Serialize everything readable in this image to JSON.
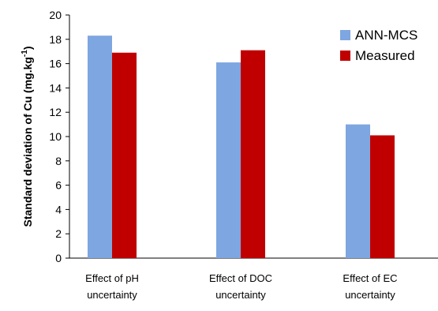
{
  "chart_data": {
    "type": "bar",
    "categories": [
      [
        "Effect of pH",
        "uncertainty"
      ],
      [
        "Effect of DOC",
        "uncertainty"
      ],
      [
        "Effect of EC",
        "uncertainty"
      ]
    ],
    "series": [
      {
        "name": "ANN-MCS",
        "color": "#7ea6e0",
        "values": [
          18.3,
          16.1,
          11.0
        ]
      },
      {
        "name": "Measured",
        "color": "#c00000",
        "values": [
          16.9,
          17.1,
          10.1
        ]
      }
    ],
    "ylabel_main": "Standard deviation of Cu (mg.kg",
    "ylabel_sup": "-1",
    "ylabel_end": ")",
    "ylim": [
      0,
      20
    ],
    "yticks": [
      "0",
      "2",
      "4",
      "6",
      "8",
      "10",
      "12",
      "14",
      "16",
      "18",
      "20"
    ],
    "legend_position": "top-right",
    "grid": false
  }
}
